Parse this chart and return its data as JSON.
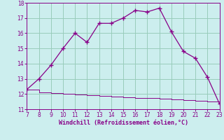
{
  "x": [
    7,
    8,
    9,
    10,
    11,
    12,
    13,
    14,
    15,
    16,
    17,
    18,
    19,
    20,
    21,
    22,
    23
  ],
  "y_line1": [
    12.3,
    13.0,
    13.9,
    15.0,
    16.0,
    15.4,
    16.65,
    16.65,
    17.0,
    17.5,
    17.4,
    17.65,
    16.1,
    14.8,
    14.35,
    13.1,
    11.35
  ],
  "y_line2": [
    12.3,
    12.1,
    12.05,
    12.0,
    11.95,
    11.9,
    11.87,
    11.83,
    11.79,
    11.75,
    11.72,
    11.68,
    11.63,
    11.59,
    11.55,
    11.5,
    11.35
  ],
  "line_color": "#880088",
  "bg_color": "#cceeee",
  "grid_color": "#99ccbb",
  "xlabel": "Windchill (Refroidissement éolien,°C)",
  "xlim": [
    7,
    23
  ],
  "ylim": [
    11,
    18
  ],
  "xticks": [
    7,
    8,
    9,
    10,
    11,
    12,
    13,
    14,
    15,
    16,
    17,
    18,
    19,
    20,
    21,
    22,
    23
  ],
  "yticks": [
    11,
    12,
    13,
    14,
    15,
    16,
    17,
    18
  ],
  "tick_color": "#880088",
  "label_color": "#880088",
  "marker_color": "#880088"
}
